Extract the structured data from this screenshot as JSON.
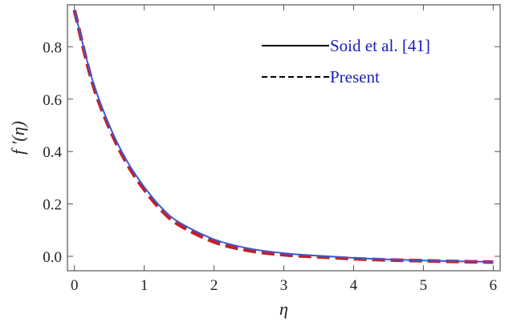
{
  "chart_data": {
    "type": "line",
    "xlabel": "η",
    "ylabel": "f ′(η)",
    "xlim": [
      -0.1,
      6.1
    ],
    "ylim": [
      -0.055,
      0.96
    ],
    "x_ticks": [
      0,
      1,
      2,
      3,
      4,
      5,
      6
    ],
    "x_tick_labels": [
      "0",
      "1",
      "2",
      "3",
      "4",
      "5",
      "6"
    ],
    "y_ticks": [
      0.0,
      0.2,
      0.4,
      0.6,
      0.8
    ],
    "y_tick_labels": [
      "0.0",
      "0.2",
      "0.4",
      "0.6",
      "0.8"
    ],
    "grid": false,
    "legend_position": "top-right",
    "series": [
      {
        "name": "Soid et al. [41]",
        "style": "solid",
        "color": "#3a5ad4",
        "legend_color": "#000000",
        "x": [
          0,
          0.25,
          0.5,
          0.75,
          1.0,
          1.25,
          1.5,
          2.0,
          2.5,
          3.0,
          3.5,
          4.0,
          4.5,
          5.0,
          5.5,
          6.0
        ],
        "y": [
          0.94,
          0.68,
          0.5,
          0.365,
          0.265,
          0.185,
          0.13,
          0.065,
          0.03,
          0.012,
          0.002,
          -0.006,
          -0.012,
          -0.016,
          -0.019,
          -0.021
        ]
      },
      {
        "name": "Present",
        "style": "dashed",
        "color": "#c0202a",
        "legend_color": "#000000",
        "x": [
          0,
          0.25,
          0.5,
          0.75,
          1.0,
          1.25,
          1.5,
          2.0,
          2.5,
          3.0,
          3.5,
          4.0,
          4.5,
          5.0,
          5.5,
          6.0
        ],
        "y": [
          0.94,
          0.67,
          0.49,
          0.355,
          0.255,
          0.175,
          0.12,
          0.055,
          0.022,
          0.006,
          -0.002,
          -0.009,
          -0.014,
          -0.017,
          -0.02,
          -0.022
        ]
      }
    ]
  }
}
